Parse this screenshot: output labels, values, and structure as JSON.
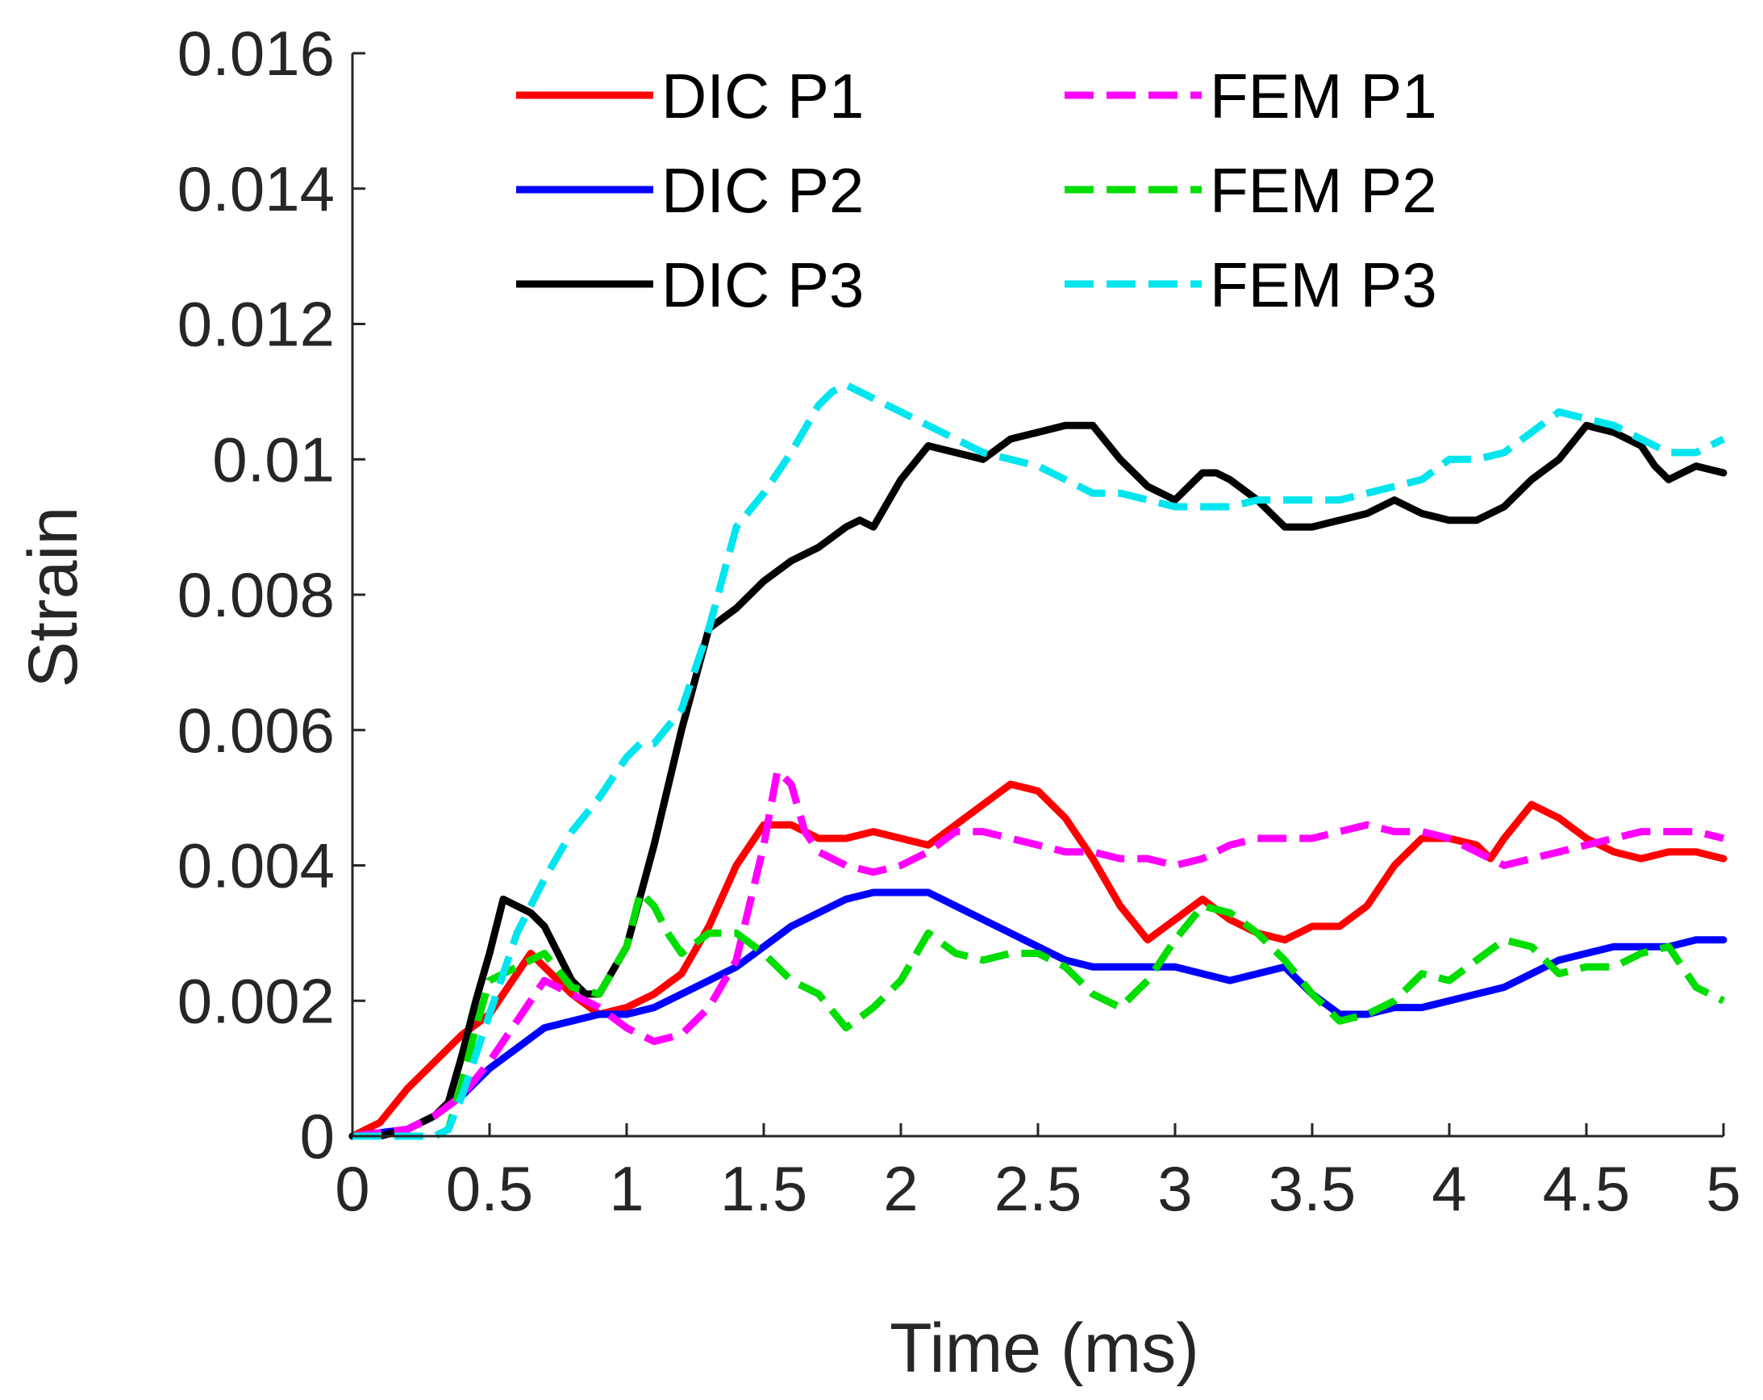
{
  "chart_data": {
    "type": "line",
    "title": "",
    "xlabel": "Time (ms)",
    "ylabel": "Strain",
    "xlim": [
      0,
      5
    ],
    "ylim": [
      0,
      0.016
    ],
    "xticks": [
      0,
      0.5,
      1,
      1.5,
      2,
      2.5,
      3,
      3.5,
      4,
      4.5,
      5
    ],
    "xtick_labels": [
      "0",
      "0.5",
      "1",
      "1.5",
      "2",
      "2.5",
      "3",
      "3.5",
      "4",
      "4.5",
      "5"
    ],
    "yticks": [
      0,
      0.002,
      0.004,
      0.006,
      0.008,
      0.01,
      0.012,
      0.014,
      0.016
    ],
    "ytick_labels": [
      "0",
      "0.002",
      "0.004",
      "0.006",
      "0.008",
      "0.01",
      "0.012",
      "0.014",
      "0.016"
    ],
    "grid": false,
    "legend_position": "top",
    "series": [
      {
        "name": "DIC P1",
        "color": "#ff0000",
        "dashed": false,
        "x": [
          0,
          0.1,
          0.2,
          0.3,
          0.4,
          0.5,
          0.6,
          0.65,
          0.7,
          0.8,
          0.9,
          1.0,
          1.1,
          1.2,
          1.3,
          1.4,
          1.5,
          1.6,
          1.7,
          1.8,
          1.9,
          2.0,
          2.1,
          2.2,
          2.3,
          2.4,
          2.5,
          2.6,
          2.7,
          2.8,
          2.9,
          3.0,
          3.1,
          3.2,
          3.3,
          3.4,
          3.5,
          3.6,
          3.7,
          3.8,
          3.9,
          4.0,
          4.1,
          4.15,
          4.2,
          4.3,
          4.4,
          4.5,
          4.6,
          4.7,
          4.8,
          4.9,
          5.0
        ],
        "y": [
          0,
          0.0002,
          0.0007,
          0.0011,
          0.0015,
          0.0018,
          0.0024,
          0.0027,
          0.0025,
          0.0021,
          0.0018,
          0.0019,
          0.0021,
          0.0024,
          0.0031,
          0.004,
          0.0046,
          0.0046,
          0.0044,
          0.0044,
          0.0045,
          0.0044,
          0.0043,
          0.0046,
          0.0049,
          0.0052,
          0.0051,
          0.0047,
          0.0041,
          0.0034,
          0.0029,
          0.0032,
          0.0035,
          0.0032,
          0.003,
          0.0029,
          0.0031,
          0.0031,
          0.0034,
          0.004,
          0.0044,
          0.0044,
          0.0043,
          0.0041,
          0.0044,
          0.0049,
          0.0047,
          0.0044,
          0.0042,
          0.0041,
          0.0042,
          0.0042,
          0.0041
        ]
      },
      {
        "name": "DIC P2",
        "color": "#0000ff",
        "dashed": false,
        "x": [
          0,
          0.2,
          0.3,
          0.4,
          0.5,
          0.6,
          0.7,
          0.8,
          0.9,
          1.0,
          1.1,
          1.2,
          1.3,
          1.4,
          1.5,
          1.6,
          1.7,
          1.8,
          1.9,
          2.0,
          2.1,
          2.2,
          2.3,
          2.4,
          2.5,
          2.6,
          2.7,
          2.8,
          2.9,
          3.0,
          3.1,
          3.2,
          3.3,
          3.4,
          3.5,
          3.6,
          3.7,
          3.8,
          3.9,
          4.0,
          4.1,
          4.2,
          4.3,
          4.4,
          4.5,
          4.6,
          4.7,
          4.8,
          4.9,
          5.0
        ],
        "y": [
          0,
          0.0001,
          0.0003,
          0.0006,
          0.001,
          0.0013,
          0.0016,
          0.0017,
          0.0018,
          0.0018,
          0.0019,
          0.0021,
          0.0023,
          0.0025,
          0.0028,
          0.0031,
          0.0033,
          0.0035,
          0.0036,
          0.0036,
          0.0036,
          0.0034,
          0.0032,
          0.003,
          0.0028,
          0.0026,
          0.0025,
          0.0025,
          0.0025,
          0.0025,
          0.0024,
          0.0023,
          0.0024,
          0.0025,
          0.0021,
          0.0018,
          0.0018,
          0.0019,
          0.0019,
          0.002,
          0.0021,
          0.0022,
          0.0024,
          0.0026,
          0.0027,
          0.0028,
          0.0028,
          0.0028,
          0.0029,
          0.0029
        ]
      },
      {
        "name": "DIC P3",
        "color": "#000000",
        "dashed": false,
        "x": [
          0,
          0.1,
          0.2,
          0.3,
          0.35,
          0.4,
          0.45,
          0.5,
          0.55,
          0.6,
          0.65,
          0.7,
          0.75,
          0.8,
          0.85,
          0.9,
          1.0,
          1.1,
          1.2,
          1.3,
          1.4,
          1.5,
          1.6,
          1.7,
          1.8,
          1.85,
          1.9,
          2.0,
          2.1,
          2.2,
          2.3,
          2.4,
          2.5,
          2.6,
          2.7,
          2.8,
          2.85,
          2.9,
          3.0,
          3.1,
          3.15,
          3.2,
          3.3,
          3.4,
          3.5,
          3.6,
          3.7,
          3.8,
          3.9,
          4.0,
          4.1,
          4.2,
          4.3,
          4.4,
          4.5,
          4.6,
          4.7,
          4.75,
          4.8,
          4.9,
          5.0
        ],
        "y": [
          0,
          0,
          0.0001,
          0.0003,
          0.0005,
          0.0012,
          0.002,
          0.0027,
          0.0035,
          0.0034,
          0.0033,
          0.0031,
          0.0027,
          0.0023,
          0.0021,
          0.0021,
          0.0028,
          0.0043,
          0.006,
          0.0075,
          0.0078,
          0.0082,
          0.0085,
          0.0087,
          0.009,
          0.0091,
          0.009,
          0.0097,
          0.0102,
          0.0101,
          0.01,
          0.0103,
          0.0104,
          0.0105,
          0.0105,
          0.01,
          0.0098,
          0.0096,
          0.0094,
          0.0098,
          0.0098,
          0.0097,
          0.0094,
          0.009,
          0.009,
          0.0091,
          0.0092,
          0.0094,
          0.0092,
          0.0091,
          0.0091,
          0.0093,
          0.0097,
          0.01,
          0.0105,
          0.0104,
          0.0102,
          0.0099,
          0.0097,
          0.0099,
          0.0098
        ]
      },
      {
        "name": "FEM P1",
        "color": "#ff00ff",
        "dashed": true,
        "x": [
          0,
          0.2,
          0.3,
          0.4,
          0.5,
          0.6,
          0.7,
          0.8,
          0.9,
          1.0,
          1.1,
          1.2,
          1.3,
          1.4,
          1.5,
          1.55,
          1.6,
          1.65,
          1.7,
          1.8,
          1.9,
          2.0,
          2.1,
          2.2,
          2.3,
          2.4,
          2.5,
          2.6,
          2.7,
          2.8,
          2.9,
          3.0,
          3.1,
          3.2,
          3.3,
          3.4,
          3.5,
          3.6,
          3.7,
          3.8,
          3.9,
          4.0,
          4.1,
          4.2,
          4.3,
          4.4,
          4.5,
          4.6,
          4.7,
          4.8,
          4.9,
          5.0
        ],
        "y": [
          0,
          0.0001,
          0.0003,
          0.0006,
          0.0011,
          0.0017,
          0.0023,
          0.0021,
          0.0019,
          0.0016,
          0.0014,
          0.0015,
          0.0019,
          0.0026,
          0.0043,
          0.0054,
          0.0052,
          0.0045,
          0.0042,
          0.004,
          0.0039,
          0.004,
          0.0042,
          0.0045,
          0.0045,
          0.0044,
          0.0043,
          0.0042,
          0.0042,
          0.0041,
          0.0041,
          0.004,
          0.0041,
          0.0043,
          0.0044,
          0.0044,
          0.0044,
          0.0045,
          0.0046,
          0.0045,
          0.0045,
          0.0044,
          0.0042,
          0.004,
          0.0041,
          0.0042,
          0.0043,
          0.0044,
          0.0045,
          0.0045,
          0.0045,
          0.0044
        ]
      },
      {
        "name": "FEM P2",
        "color": "#00dd00",
        "dashed": true,
        "x": [
          0,
          0.2,
          0.3,
          0.35,
          0.4,
          0.45,
          0.5,
          0.6,
          0.7,
          0.8,
          0.9,
          1.0,
          1.05,
          1.1,
          1.15,
          1.2,
          1.3,
          1.4,
          1.5,
          1.6,
          1.7,
          1.8,
          1.9,
          2.0,
          2.1,
          2.2,
          2.3,
          2.4,
          2.5,
          2.6,
          2.7,
          2.8,
          2.9,
          3.0,
          3.1,
          3.2,
          3.3,
          3.4,
          3.5,
          3.6,
          3.7,
          3.8,
          3.9,
          4.0,
          4.1,
          4.2,
          4.3,
          4.4,
          4.5,
          4.6,
          4.7,
          4.8,
          4.9,
          5.0
        ],
        "y": [
          0,
          0,
          0,
          0.0001,
          0.0008,
          0.0016,
          0.0023,
          0.0025,
          0.0027,
          0.0022,
          0.0021,
          0.0028,
          0.0036,
          0.0034,
          0.003,
          0.0027,
          0.003,
          0.003,
          0.0027,
          0.0023,
          0.0021,
          0.0016,
          0.0019,
          0.0023,
          0.003,
          0.0027,
          0.0026,
          0.0027,
          0.0027,
          0.0025,
          0.0021,
          0.0019,
          0.0023,
          0.0029,
          0.0034,
          0.0033,
          0.003,
          0.0026,
          0.0021,
          0.0017,
          0.0018,
          0.002,
          0.0024,
          0.0023,
          0.0026,
          0.0029,
          0.0028,
          0.0024,
          0.0025,
          0.0025,
          0.0027,
          0.0028,
          0.0022,
          0.002
        ]
      },
      {
        "name": "FEM P3",
        "color": "#00e5ee",
        "dashed": true,
        "x": [
          0,
          0.2,
          0.3,
          0.35,
          0.4,
          0.45,
          0.5,
          0.55,
          0.6,
          0.7,
          0.8,
          0.9,
          1.0,
          1.05,
          1.1,
          1.2,
          1.3,
          1.4,
          1.5,
          1.6,
          1.7,
          1.75,
          1.8,
          1.9,
          2.0,
          2.1,
          2.2,
          2.3,
          2.4,
          2.5,
          2.6,
          2.7,
          2.8,
          2.9,
          3.0,
          3.1,
          3.2,
          3.3,
          3.4,
          3.5,
          3.6,
          3.7,
          3.8,
          3.9,
          4.0,
          4.1,
          4.2,
          4.3,
          4.4,
          4.5,
          4.6,
          4.7,
          4.8,
          4.9,
          5.0
        ],
        "y": [
          0,
          0,
          0,
          0.0001,
          0.0006,
          0.0012,
          0.0018,
          0.0024,
          0.003,
          0.0038,
          0.0045,
          0.005,
          0.0056,
          0.0058,
          0.0058,
          0.0063,
          0.0075,
          0.009,
          0.0095,
          0.0101,
          0.0108,
          0.011,
          0.0111,
          0.0109,
          0.0107,
          0.0105,
          0.0103,
          0.0101,
          0.01,
          0.0099,
          0.0097,
          0.0095,
          0.0095,
          0.0094,
          0.0093,
          0.0093,
          0.0093,
          0.0094,
          0.0094,
          0.0094,
          0.0094,
          0.0095,
          0.0096,
          0.0097,
          0.01,
          0.01,
          0.0101,
          0.0104,
          0.0107,
          0.0106,
          0.0105,
          0.0103,
          0.0101,
          0.0101,
          0.0103
        ]
      }
    ]
  }
}
